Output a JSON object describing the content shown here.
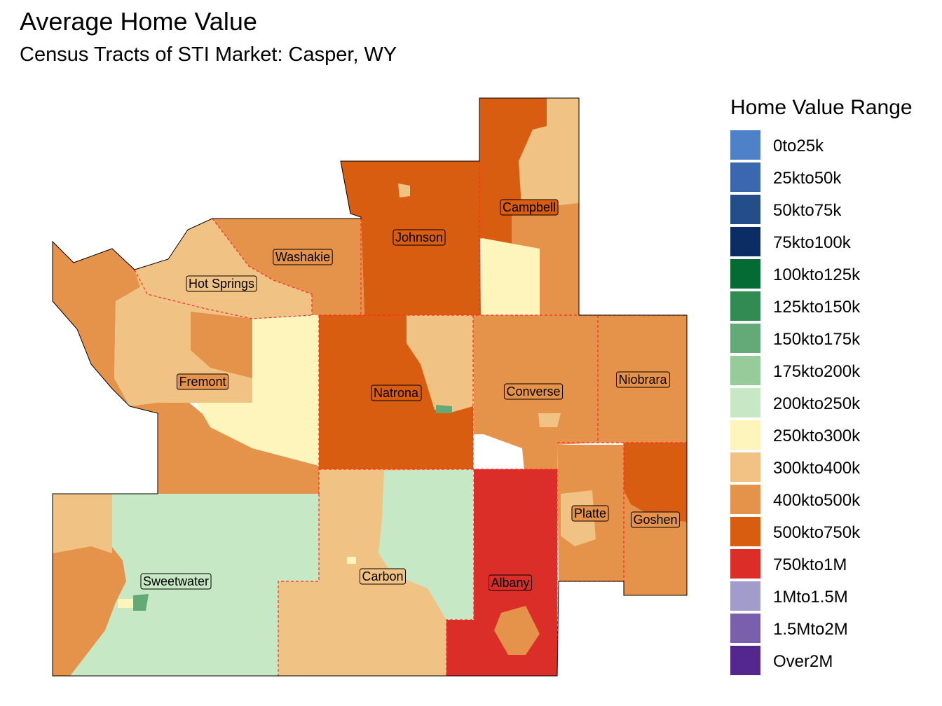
{
  "title": "Average Home Value",
  "subtitle": "Census Tracts of STI Market: Casper, WY",
  "legend": {
    "title": "Home Value Range",
    "items": [
      {
        "label": "0to25k",
        "color": "#4f81c9"
      },
      {
        "label": "25kto50k",
        "color": "#3a67ad"
      },
      {
        "label": "50kto75k",
        "color": "#244e8a"
      },
      {
        "label": "75kto100k",
        "color": "#0b2d63"
      },
      {
        "label": "100kto125k",
        "color": "#046b32"
      },
      {
        "label": "125kto150k",
        "color": "#328c51"
      },
      {
        "label": "150kto175k",
        "color": "#63aa76"
      },
      {
        "label": "175kto200k",
        "color": "#98cb9a"
      },
      {
        "label": "200kto250k",
        "color": "#c7e8c4"
      },
      {
        "label": "250kto300k",
        "color": "#fef5bc"
      },
      {
        "label": "300kto400k",
        "color": "#f0c385"
      },
      {
        "label": "400kto500k",
        "color": "#e5924a"
      },
      {
        "label": "500kto750k",
        "color": "#d85d10"
      },
      {
        "label": "750kto1M",
        "color": "#dc2e28"
      },
      {
        "label": "1Mto1.5M",
        "color": "#a19dca"
      },
      {
        "label": "1.5Mto2M",
        "color": "#7a5fac"
      },
      {
        "label": "Over2M",
        "color": "#54278f"
      }
    ]
  },
  "counties": [
    {
      "name": "Campbell",
      "range": "500kto750k"
    },
    {
      "name": "Johnson",
      "range": "500kto750k"
    },
    {
      "name": "Washakie",
      "range": "400kto500k"
    },
    {
      "name": "Hot Springs",
      "range": "300kto400k"
    },
    {
      "name": "Fremont",
      "range": "400kto500k"
    },
    {
      "name": "Natrona",
      "range": "500kto750k"
    },
    {
      "name": "Converse",
      "range": "400kto500k"
    },
    {
      "name": "Niobrara",
      "range": "400kto500k"
    },
    {
      "name": "Platte",
      "range": "400kto500k"
    },
    {
      "name": "Goshen",
      "range": "400kto500k"
    },
    {
      "name": "Sweetwater",
      "range": "200kto250k"
    },
    {
      "name": "Carbon",
      "range": "300kto400k"
    },
    {
      "name": "Albany",
      "range": "750kto1M"
    }
  ]
}
